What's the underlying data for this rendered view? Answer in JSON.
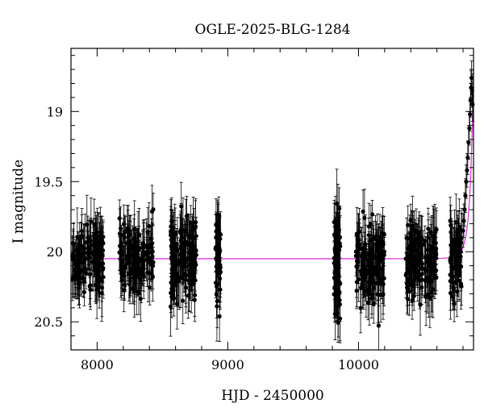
{
  "colors": {
    "background": "#ffffff",
    "axis": "#000000",
    "points": "#000000",
    "model_curve": "#e03be0"
  },
  "chart_data": {
    "type": "scatter",
    "title": "OGLE-2025-BLG-1284",
    "xlabel": "HJD - 2450000",
    "ylabel": "I magnitude",
    "xlim": [
      7800,
      10880
    ],
    "ylim": [
      20.7,
      18.55
    ],
    "y_inverted": true,
    "grid": false,
    "legend": "none",
    "xticks": [
      8000,
      9000,
      10000
    ],
    "xtick_labels": [
      "8000",
      "9000",
      "10000"
    ],
    "yticks": [
      19,
      19.5,
      20,
      20.5
    ],
    "ytick_labels": [
      "19",
      "19.5",
      "20",
      "20.5"
    ],
    "series": [
      {
        "kind": "data_with_errorbars",
        "segments": [
          {
            "x_start": 7810,
            "x_end": 8050,
            "n": 130,
            "mean": 20.04,
            "spread": 0.11,
            "err": 0.15
          },
          {
            "x_start": 8170,
            "x_end": 8430,
            "n": 150,
            "mean": 20.05,
            "spread": 0.12,
            "err": 0.15
          },
          {
            "x_start": 8560,
            "x_end": 8760,
            "n": 150,
            "mean": 20.04,
            "spread": 0.14,
            "err": 0.17
          },
          {
            "x_start": 8905,
            "x_end": 8945,
            "n": 40,
            "mean": 20.04,
            "spread": 0.18,
            "err": 0.18
          },
          {
            "x_start": 9810,
            "x_end": 9860,
            "n": 70,
            "mean": 20.1,
            "spread": 0.2,
            "err": 0.2
          },
          {
            "x_start": 9980,
            "x_end": 10200,
            "n": 140,
            "mean": 20.08,
            "spread": 0.14,
            "err": 0.16
          },
          {
            "x_start": 10360,
            "x_end": 10600,
            "n": 150,
            "mean": 20.07,
            "spread": 0.13,
            "err": 0.16
          },
          {
            "x_start": 10700,
            "x_end": 10790,
            "n": 70,
            "mean": 20.05,
            "spread": 0.13,
            "err": 0.15
          }
        ],
        "rise_points": [
          {
            "x": 10800,
            "y": 19.85
          },
          {
            "x": 10806,
            "y": 19.78
          },
          {
            "x": 10812,
            "y": 19.7
          },
          {
            "x": 10818,
            "y": 19.6
          },
          {
            "x": 10824,
            "y": 19.5
          },
          {
            "x": 10830,
            "y": 19.42
          },
          {
            "x": 10836,
            "y": 19.33
          },
          {
            "x": 10842,
            "y": 19.22
          },
          {
            "x": 10848,
            "y": 19.12
          },
          {
            "x": 10853,
            "y": 19.02
          },
          {
            "x": 10857,
            "y": 18.92
          },
          {
            "x": 10861,
            "y": 18.83
          },
          {
            "x": 10865,
            "y": 18.76
          },
          {
            "x": 10869,
            "y": 18.85
          },
          {
            "x": 10873,
            "y": 18.95
          }
        ]
      },
      {
        "kind": "model_curve",
        "baseline": 20.05,
        "t0": 10890,
        "u0": 0.22,
        "tE": 50
      }
    ]
  }
}
